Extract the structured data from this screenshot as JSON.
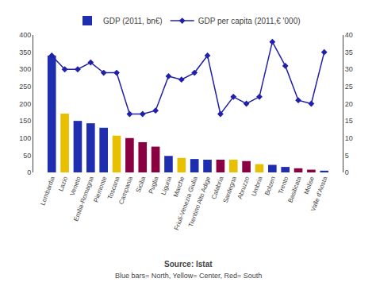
{
  "chart_data": {
    "type": "bar",
    "categories": [
      "Lombardia",
      "Lazio",
      "Veneto",
      "Emilia-Romagna",
      "Piemonte",
      "Toscana",
      "Campania",
      "Sicilia",
      "Puglia",
      "Liguria",
      "Marche",
      "Friuli-Venezia Giulia",
      "Trentino Alto Adige",
      "Calabria",
      "Sardegna",
      "Abruzzo",
      "Umbria",
      "Bolzen",
      "Trento",
      "Basilicata",
      "Molise",
      "Valle d'Aosta"
    ],
    "series": [
      {
        "name": "GDP (2011, bn€)",
        "type": "bar",
        "colors": [
          "#1F2DB0",
          "#E8C000",
          "#1F2DB0",
          "#1F2DB0",
          "#1F2DB0",
          "#E8C000",
          "#8B0040",
          "#8B0040",
          "#8B0040",
          "#1F2DB0",
          "#E8C000",
          "#1F2DB0",
          "#1F2DB0",
          "#8B0040",
          "#E8C000",
          "#8B0040",
          "#E8C000",
          "#1F2DB0",
          "#1F2DB0",
          "#8B0040",
          "#8B0040",
          "#1F2DB0"
        ],
        "values": [
          340,
          171,
          150,
          143,
          130,
          107,
          100,
          88,
          75,
          48,
          42,
          39,
          37,
          37,
          37,
          33,
          24,
          22,
          16,
          12,
          8,
          5
        ]
      },
      {
        "name": "GDP per capita (2011,€ '000)",
        "type": "line",
        "axis": "y2",
        "color": "#2020AA",
        "marker": "diamond",
        "values": [
          34,
          30,
          30,
          32,
          29,
          29,
          17,
          17,
          18,
          28,
          27,
          29,
          34,
          17,
          22,
          20,
          22,
          38,
          31,
          21,
          20,
          35
        ]
      }
    ],
    "ylim": [
      0,
      400
    ],
    "yticks": [
      0,
      50,
      100,
      150,
      200,
      250,
      300,
      350,
      400
    ],
    "y2lim": [
      0,
      40
    ],
    "y2ticks": [
      0,
      5,
      10,
      15,
      20,
      25,
      30,
      35,
      40
    ],
    "grid": false,
    "legend": "top",
    "annotations": [
      "Source: Istat",
      "Blue bars= North, Yellow= Center, Red= South"
    ]
  }
}
